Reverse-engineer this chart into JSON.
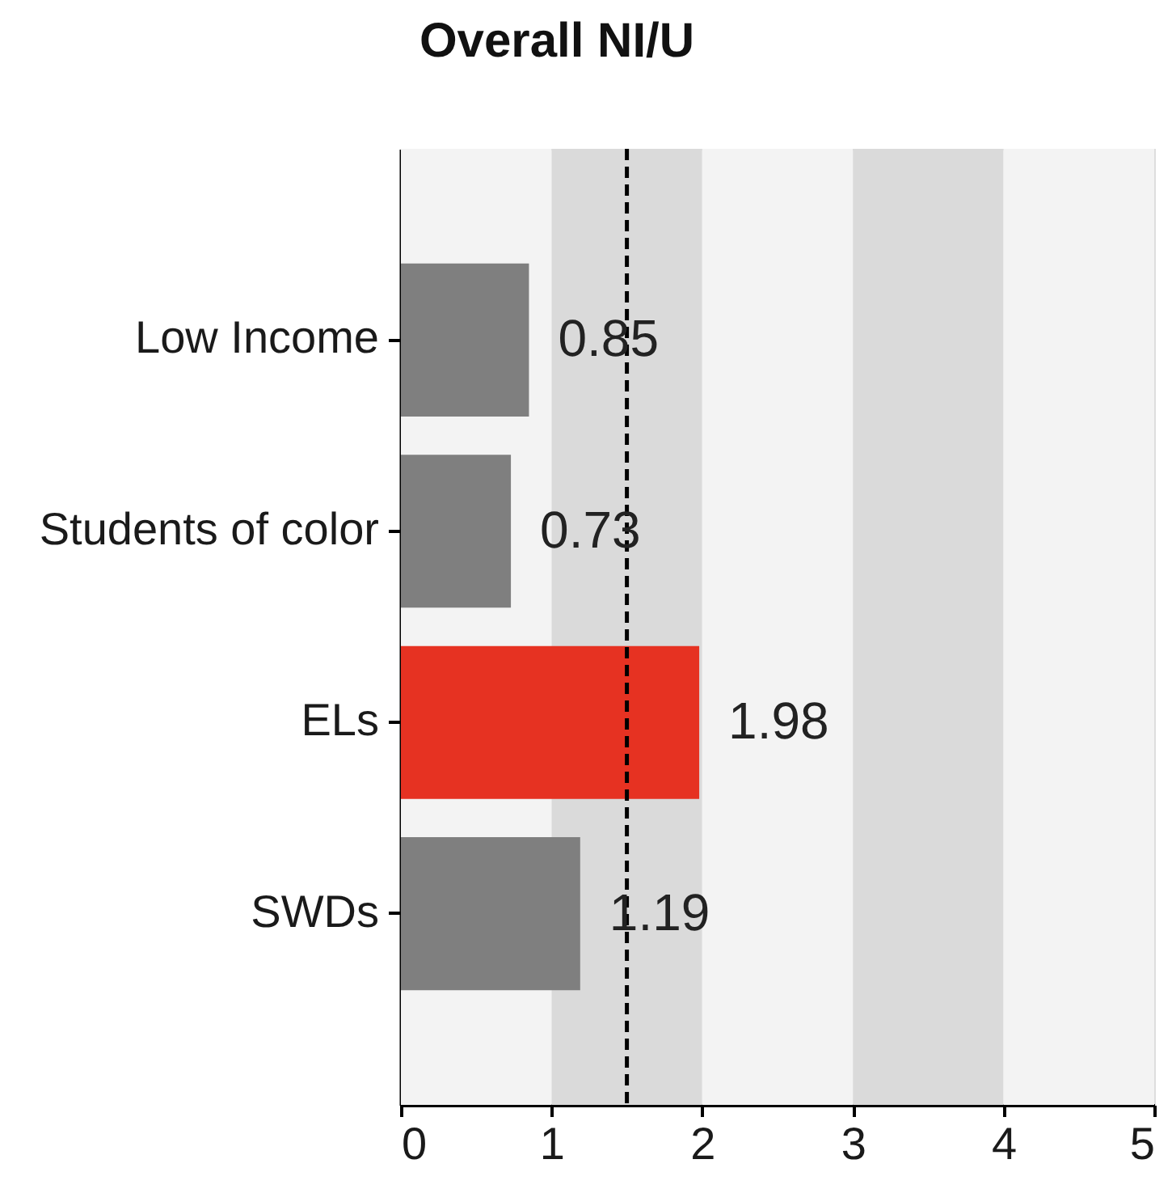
{
  "chart_data": {
    "type": "bar",
    "orientation": "horizontal",
    "title": "Overall NI/U",
    "categories": [
      "Low Income",
      "Students of color",
      "ELs",
      "SWDs"
    ],
    "values": [
      0.85,
      0.73,
      1.98,
      1.19
    ],
    "colors": [
      "#7f7f7f",
      "#7f7f7f",
      "#e63222",
      "#7f7f7f"
    ],
    "xlim": [
      0,
      5
    ],
    "xticks": [
      0,
      1,
      2,
      3,
      4,
      5
    ],
    "data_labels": true,
    "bands": [
      {
        "axis": "x",
        "from": 0,
        "to": 1,
        "color": "#f3f3f3"
      },
      {
        "axis": "x",
        "from": 1,
        "to": 2,
        "color": "#dadada"
      },
      {
        "axis": "x",
        "from": 2,
        "to": 3,
        "color": "#f3f3f3"
      },
      {
        "axis": "x",
        "from": 3,
        "to": 4,
        "color": "#dadada"
      },
      {
        "axis": "x",
        "from": 4,
        "to": 5,
        "color": "#f3f3f3"
      }
    ],
    "ref_lines": [
      {
        "axis": "x",
        "value": 1.5,
        "color": "#000000",
        "line_style": "dashed"
      }
    ]
  }
}
